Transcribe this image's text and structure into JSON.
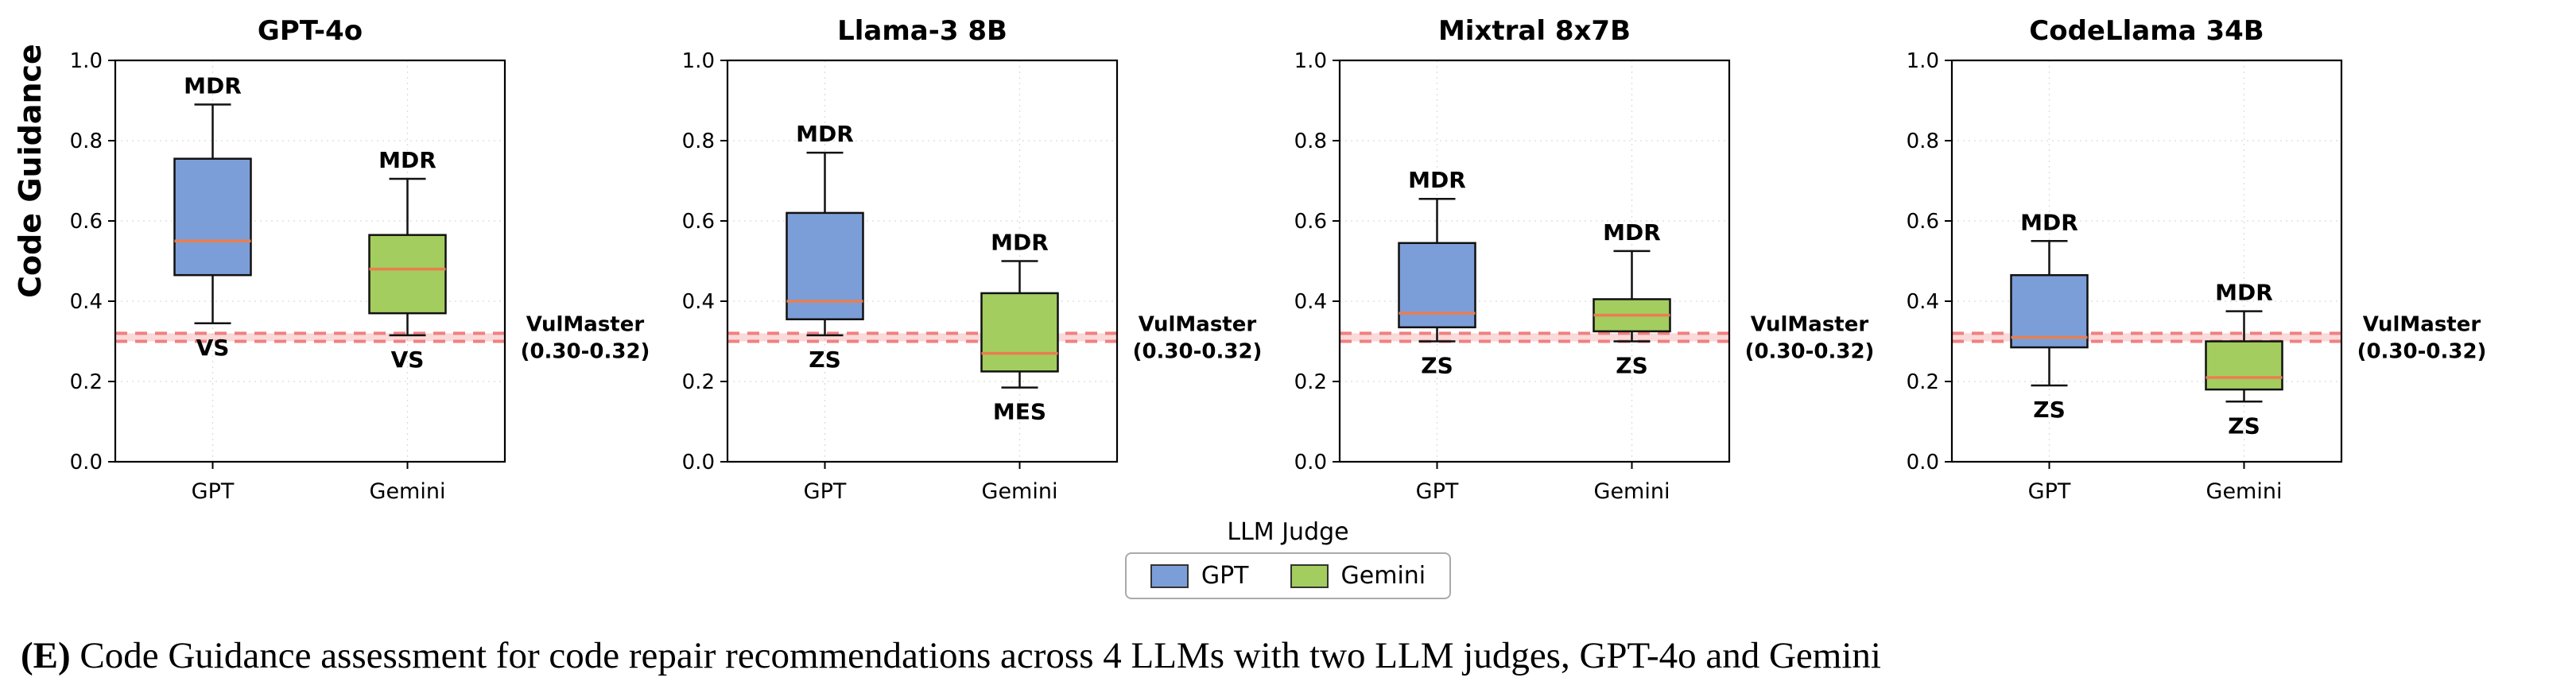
{
  "figure": {
    "ylabel": "Code Guidance",
    "median_color": "#E97E50",
    "legend": {
      "title": "LLM Judge",
      "entries": [
        {
          "label": "GPT",
          "color": "#7C9ED8"
        },
        {
          "label": "Gemini",
          "color": "#A3CD5E"
        }
      ]
    },
    "caption_prefix": "(E)",
    "caption_text": " Code Guidance assessment for code repair recommendations across 4 LLMs with two LLM judges, GPT-4o and Gemini"
  },
  "chart_data": [
    {
      "type": "box",
      "title": "GPT-4o",
      "categories": [
        "GPT",
        "Gemini"
      ],
      "ylim": [
        0.0,
        1.0
      ],
      "yticks": [
        0.0,
        0.2,
        0.4,
        0.6,
        0.8,
        1.0
      ],
      "reference_band": {
        "label": "VulMaster",
        "range_label": "(0.30-0.32)",
        "low": 0.3,
        "high": 0.32,
        "color": "#F08080"
      },
      "series": [
        {
          "name": "GPT",
          "color": "#7C9ED8",
          "whisker_low": 0.345,
          "q1": 0.465,
          "median": 0.55,
          "q3": 0.755,
          "whisker_high": 0.89,
          "label_top": "MDR",
          "label_bottom": "VS"
        },
        {
          "name": "Gemini",
          "color": "#A3CD5E",
          "whisker_low": 0.315,
          "q1": 0.37,
          "median": 0.48,
          "q3": 0.565,
          "whisker_high": 0.705,
          "label_top": "MDR",
          "label_bottom": "VS"
        }
      ]
    },
    {
      "type": "box",
      "title": "Llama-3 8B",
      "categories": [
        "GPT",
        "Gemini"
      ],
      "ylim": [
        0.0,
        1.0
      ],
      "yticks": [
        0.0,
        0.2,
        0.4,
        0.6,
        0.8,
        1.0
      ],
      "reference_band": {
        "label": "VulMaster",
        "range_label": "(0.30-0.32)",
        "low": 0.3,
        "high": 0.32,
        "color": "#F08080"
      },
      "series": [
        {
          "name": "GPT",
          "color": "#7C9ED8",
          "whisker_low": 0.315,
          "q1": 0.355,
          "median": 0.4,
          "q3": 0.62,
          "whisker_high": 0.77,
          "label_top": "MDR",
          "label_bottom": "ZS"
        },
        {
          "name": "Gemini",
          "color": "#A3CD5E",
          "whisker_low": 0.185,
          "q1": 0.225,
          "median": 0.27,
          "q3": 0.42,
          "whisker_high": 0.5,
          "label_top": "MDR",
          "label_bottom": "MES"
        }
      ]
    },
    {
      "type": "box",
      "title": "Mixtral 8x7B",
      "categories": [
        "GPT",
        "Gemini"
      ],
      "ylim": [
        0.0,
        1.0
      ],
      "yticks": [
        0.0,
        0.2,
        0.4,
        0.6,
        0.8,
        1.0
      ],
      "reference_band": {
        "label": "VulMaster",
        "range_label": "(0.30-0.32)",
        "low": 0.3,
        "high": 0.32,
        "color": "#F08080"
      },
      "series": [
        {
          "name": "GPT",
          "color": "#7C9ED8",
          "whisker_low": 0.3,
          "q1": 0.335,
          "median": 0.37,
          "q3": 0.545,
          "whisker_high": 0.655,
          "label_top": "MDR",
          "label_bottom": "ZS"
        },
        {
          "name": "Gemini",
          "color": "#A3CD5E",
          "whisker_low": 0.3,
          "q1": 0.325,
          "median": 0.365,
          "q3": 0.405,
          "whisker_high": 0.525,
          "label_top": "MDR",
          "label_bottom": "ZS"
        }
      ]
    },
    {
      "type": "box",
      "title": "CodeLlama 34B",
      "categories": [
        "GPT",
        "Gemini"
      ],
      "ylim": [
        0.0,
        1.0
      ],
      "yticks": [
        0.0,
        0.2,
        0.4,
        0.6,
        0.8,
        1.0
      ],
      "reference_band": {
        "label": "VulMaster",
        "range_label": "(0.30-0.32)",
        "low": 0.3,
        "high": 0.32,
        "color": "#F08080"
      },
      "series": [
        {
          "name": "GPT",
          "color": "#7C9ED8",
          "whisker_low": 0.19,
          "q1": 0.285,
          "median": 0.31,
          "q3": 0.465,
          "whisker_high": 0.55,
          "label_top": "MDR",
          "label_bottom": "ZS"
        },
        {
          "name": "Gemini",
          "color": "#A3CD5E",
          "whisker_low": 0.15,
          "q1": 0.18,
          "median": 0.21,
          "q3": 0.3,
          "whisker_high": 0.375,
          "label_top": "MDR",
          "label_bottom": "ZS"
        }
      ]
    }
  ]
}
